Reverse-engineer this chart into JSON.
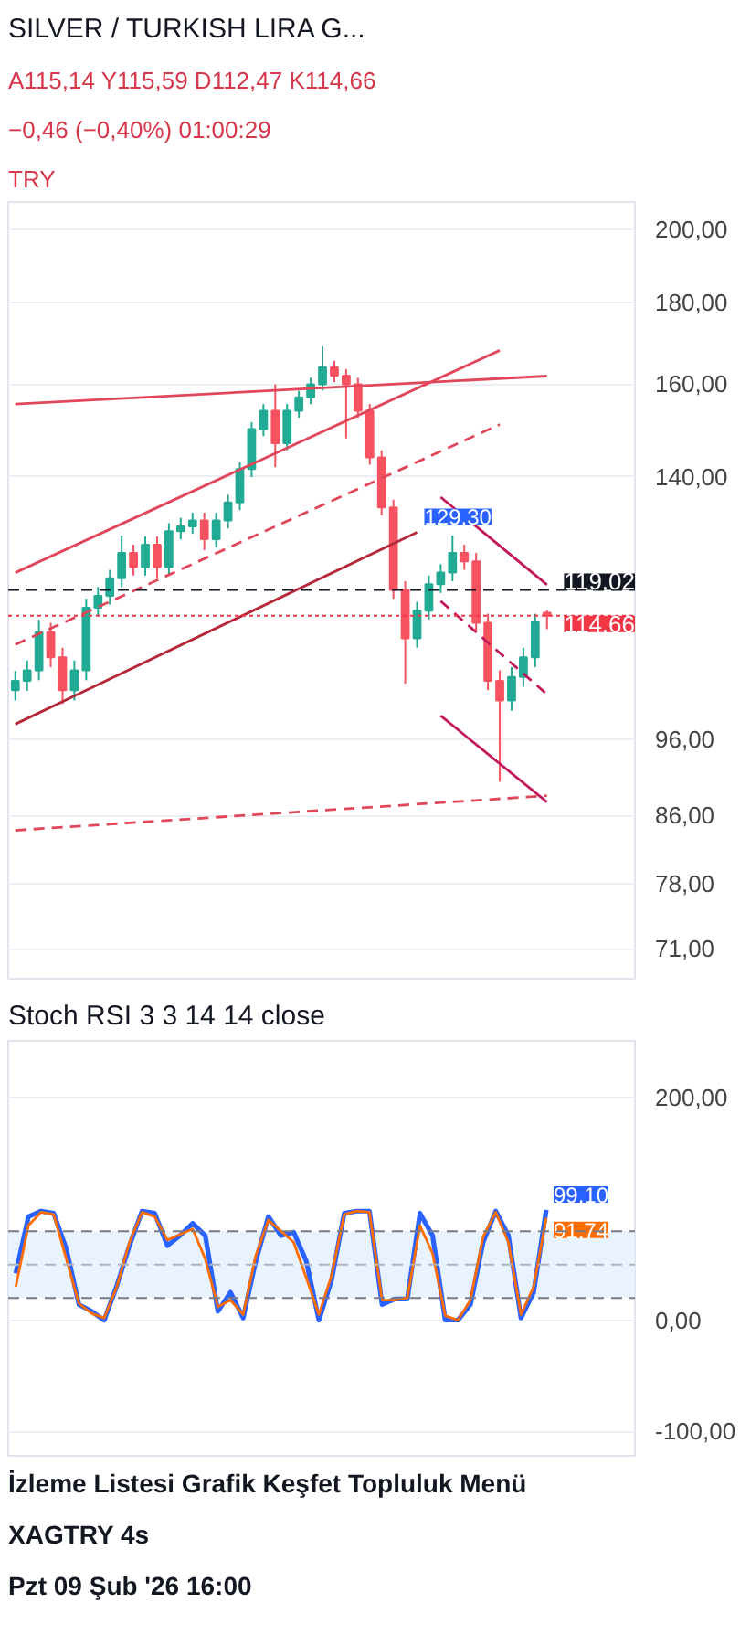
{
  "chart_data": [
    {
      "type": "candlestick",
      "title": "SILVER / TURKISH LIRA G...",
      "subtitle": "A115,14  Y115,59  D112,47  K114,66",
      "annotations": [
        "−0,46 (−0,40%)   01:00:29",
        "TRY"
      ],
      "categories": [
        null,
        null,
        null,
        null,
        null,
        null,
        null,
        null,
        null,
        null,
        null,
        null,
        null,
        null,
        null,
        null,
        null,
        null,
        null,
        null,
        null,
        null,
        null,
        null,
        null,
        null,
        null,
        null,
        null,
        null,
        null,
        null,
        null,
        null,
        null,
        null,
        null,
        null,
        null,
        null,
        null,
        null,
        null,
        null,
        null,
        null
      ],
      "ohlc": [
        [
          103,
          105.9,
          101.5,
          104.4
        ],
        [
          104.4,
          107.5,
          102.9,
          106
        ],
        [
          106,
          114,
          104.5,
          112
        ],
        [
          112,
          113.5,
          106.5,
          108
        ],
        [
          108,
          109.5,
          101,
          103
        ],
        [
          103,
          107.5,
          101.5,
          106
        ],
        [
          106,
          117.5,
          104.5,
          116
        ],
        [
          116,
          119.5,
          114.5,
          118
        ],
        [
          118,
          122.5,
          116.5,
          121
        ],
        [
          121,
          128.7,
          119.5,
          125.5
        ],
        [
          125.5,
          127,
          121.5,
          123
        ],
        [
          123,
          128.5,
          121.5,
          127
        ],
        [
          127,
          128.5,
          121,
          123
        ],
        [
          123,
          131,
          121.5,
          129.5
        ],
        [
          129.5,
          132,
          128,
          130.4
        ],
        [
          130.4,
          133,
          129,
          131.5
        ],
        [
          131.5,
          133,
          126,
          128
        ],
        [
          128,
          133,
          126.5,
          131.5
        ],
        [
          131.5,
          136.5,
          130,
          135
        ],
        [
          135,
          143,
          133.5,
          141.6
        ],
        [
          141.6,
          151.5,
          140,
          150
        ],
        [
          150,
          155.5,
          148.5,
          154
        ],
        [
          154,
          160,
          142,
          147
        ],
        [
          147,
          155.5,
          145.5,
          154
        ],
        [
          154,
          158.5,
          152.5,
          157
        ],
        [
          157,
          161.5,
          155.5,
          160
        ],
        [
          160,
          169,
          158.5,
          164
        ],
        [
          164,
          165.5,
          160.5,
          162
        ],
        [
          162,
          163.5,
          148,
          160
        ],
        [
          160,
          161.5,
          152.5,
          154
        ],
        [
          154,
          155.5,
          142.5,
          144
        ],
        [
          144,
          145.5,
          132.5,
          134
        ],
        [
          134,
          135.5,
          117.5,
          119
        ],
        [
          119,
          120.5,
          104,
          111
        ],
        [
          111,
          117,
          109.5,
          115.5
        ],
        [
          115.5,
          121.5,
          114,
          120
        ],
        [
          120,
          123.5,
          118.5,
          122
        ],
        [
          122,
          128.7,
          120.5,
          125.5
        ],
        [
          125.5,
          127,
          122.5,
          124
        ],
        [
          124,
          125.5,
          112,
          113.5
        ],
        [
          113.5,
          115,
          103,
          104.4
        ],
        [
          104.4,
          106,
          90.3,
          101.5
        ],
        [
          101.5,
          106.5,
          100,
          105
        ],
        [
          105,
          109.5,
          103.5,
          108
        ],
        [
          108,
          115,
          106.5,
          113.6
        ],
        [
          115.14,
          115.59,
          112.47,
          114.66
        ]
      ],
      "series": [
        {
          "type": "line",
          "color": "#e0475b",
          "values": [
            155.5,
            null,
            null,
            null,
            null,
            null,
            null,
            null,
            null,
            null,
            null,
            null,
            null,
            null,
            null,
            null,
            null,
            null,
            null,
            null,
            null,
            null,
            null,
            null,
            null,
            null,
            null,
            null,
            null,
            null,
            null,
            null,
            null,
            null,
            null,
            null,
            null,
            null,
            null,
            null,
            null,
            null,
            null,
            null,
            null,
            161.9
          ]
        },
        {
          "type": "line",
          "color": "#e0475b",
          "values": [
            122,
            null,
            null,
            null,
            null,
            null,
            null,
            null,
            null,
            null,
            null,
            null,
            null,
            null,
            null,
            null,
            null,
            null,
            null,
            null,
            null,
            null,
            null,
            null,
            null,
            null,
            null,
            null,
            null,
            null,
            null,
            null,
            null,
            null,
            null,
            null,
            null,
            null,
            null,
            null,
            null,
            168,
            null,
            null,
            null,
            null
          ]
        },
        {
          "type": "line",
          "color": "#b5283a",
          "value_labels": [
            null,
            null,
            null,
            null,
            null,
            null,
            null,
            null,
            null,
            null,
            null,
            null,
            null,
            null,
            null,
            null,
            null,
            null,
            null,
            null,
            null,
            null,
            null,
            null,
            null,
            null,
            null,
            null,
            null,
            null,
            null,
            null,
            null,
            null,
            "129,30",
            null,
            null,
            null,
            null,
            null,
            null,
            null,
            null,
            null,
            null,
            null
          ],
          "values": [
            98.1,
            null,
            null,
            null,
            null,
            null,
            null,
            null,
            null,
            null,
            null,
            null,
            null,
            null,
            null,
            null,
            null,
            null,
            null,
            null,
            null,
            null,
            null,
            null,
            null,
            null,
            null,
            null,
            null,
            null,
            null,
            null,
            null,
            null,
            129.3,
            null,
            null,
            null,
            null,
            null,
            null,
            null,
            null,
            null,
            null,
            null
          ]
        },
        {
          "type": "line",
          "color": "#e0475b",
          "line_style": "dashed",
          "values": [
            110,
            null,
            null,
            null,
            null,
            null,
            null,
            null,
            null,
            null,
            null,
            null,
            null,
            null,
            null,
            null,
            null,
            null,
            null,
            null,
            null,
            null,
            null,
            null,
            null,
            null,
            null,
            null,
            null,
            null,
            null,
            null,
            null,
            null,
            null,
            null,
            null,
            null,
            null,
            null,
            null,
            151,
            null,
            null,
            null,
            null
          ]
        },
        {
          "type": "line",
          "color": "#c2185b",
          "values": [
            null,
            null,
            null,
            null,
            null,
            null,
            null,
            null,
            null,
            null,
            null,
            null,
            null,
            null,
            null,
            null,
            null,
            null,
            null,
            null,
            null,
            null,
            null,
            null,
            null,
            null,
            null,
            null,
            null,
            null,
            null,
            null,
            null,
            null,
            null,
            null,
            136,
            null,
            null,
            null,
            null,
            null,
            null,
            null,
            null,
            119.9
          ]
        },
        {
          "type": "line",
          "color": "#c2185b",
          "values": [
            null,
            null,
            null,
            null,
            null,
            null,
            null,
            null,
            null,
            null,
            null,
            null,
            null,
            null,
            null,
            null,
            null,
            null,
            null,
            null,
            null,
            null,
            null,
            null,
            null,
            null,
            null,
            null,
            null,
            null,
            null,
            null,
            null,
            null,
            null,
            null,
            99.3,
            null,
            null,
            null,
            null,
            null,
            null,
            null,
            null,
            87.7
          ]
        },
        {
          "type": "line",
          "color": "#c2185b",
          "line_style": "dashed",
          "values": [
            null,
            null,
            null,
            null,
            null,
            null,
            null,
            null,
            null,
            null,
            null,
            null,
            null,
            null,
            null,
            null,
            null,
            null,
            null,
            null,
            null,
            null,
            null,
            null,
            null,
            null,
            null,
            null,
            null,
            null,
            null,
            null,
            null,
            null,
            null,
            null,
            117.1,
            null,
            null,
            null,
            null,
            null,
            null,
            null,
            null,
            102.4
          ]
        },
        {
          "type": "line",
          "color": "#e0475b",
          "line_style": "dashed",
          "values": [
            84.2,
            null,
            null,
            null,
            null,
            null,
            null,
            null,
            null,
            null,
            null,
            null,
            null,
            null,
            null,
            null,
            null,
            null,
            null,
            null,
            null,
            null,
            null,
            null,
            null,
            null,
            null,
            null,
            null,
            null,
            null,
            null,
            null,
            null,
            null,
            null,
            null,
            null,
            null,
            null,
            null,
            null,
            null,
            null,
            null,
            88.5
          ]
        }
      ],
      "ylim": [
        68,
        208
      ],
      "log": true,
      "yticks": [
        {
          "value": 71,
          "label": "71,00"
        },
        {
          "value": 78,
          "label": "78,00"
        },
        {
          "value": 86,
          "label": "86,00"
        },
        {
          "value": 96,
          "label": "96,00"
        },
        {
          "value": 140,
          "label": "140,00"
        },
        {
          "value": 160,
          "label": "160,00"
        },
        {
          "value": 180,
          "label": "180,00"
        },
        {
          "value": 200,
          "label": "200,00"
        }
      ],
      "tick_labels": "y",
      "grid": "y",
      "ref_lines": [
        {
          "axis": "y",
          "value": 119.02,
          "label": "119,02",
          "color": "#131722",
          "line_style": "dashed"
        },
        {
          "axis": "y",
          "value": 114.66,
          "label": "114,66",
          "color": "#f23645",
          "line_style": "dotted"
        }
      ]
    },
    {
      "type": "line",
      "title": "Stoch RSI 3 3 14 14 close",
      "categories": [
        null,
        null,
        null,
        null,
        null,
        null,
        null,
        null,
        null,
        null,
        null,
        null,
        null,
        null,
        null,
        null,
        null,
        null,
        null,
        null,
        null,
        null,
        null,
        null,
        null,
        null,
        null,
        null,
        null,
        null,
        null,
        null,
        null,
        null,
        null,
        null,
        null,
        null,
        null,
        null,
        null,
        null,
        null
      ],
      "series": [
        {
          "color": "#2962ff",
          "value_labels": [
            null,
            null,
            null,
            null,
            null,
            null,
            null,
            null,
            null,
            null,
            null,
            null,
            null,
            null,
            null,
            null,
            null,
            null,
            null,
            null,
            null,
            null,
            null,
            null,
            null,
            null,
            null,
            null,
            null,
            null,
            null,
            null,
            null,
            null,
            null,
            null,
            null,
            null,
            null,
            null,
            null,
            null,
            "99,10"
          ],
          "values": [
            42,
            93,
            98,
            96,
            64,
            14,
            8,
            0,
            31,
            67,
            98,
            96,
            67,
            76,
            87,
            76,
            8,
            25,
            2,
            53,
            93,
            76,
            79,
            53,
            0,
            36,
            96,
            98,
            98,
            14,
            19,
            19,
            96,
            76,
            0,
            0,
            14,
            70,
            98,
            76,
            2,
            25,
            99.1
          ]
        },
        {
          "color": "#ff6d00",
          "value_labels": [
            null,
            null,
            null,
            null,
            null,
            null,
            null,
            null,
            null,
            null,
            null,
            null,
            null,
            null,
            null,
            null,
            null,
            null,
            null,
            null,
            null,
            null,
            null,
            null,
            null,
            null,
            null,
            null,
            null,
            null,
            null,
            null,
            null,
            null,
            null,
            null,
            null,
            null,
            null,
            null,
            null,
            null,
            "91,74"
          ],
          "values": [
            30,
            85,
            97,
            95,
            55,
            15,
            6,
            2,
            30,
            70,
            97,
            93,
            72,
            77,
            82,
            55,
            12,
            18,
            5,
            58,
            90,
            80,
            70,
            38,
            5,
            40,
            95,
            98,
            97,
            18,
            18,
            20,
            85,
            60,
            4,
            0,
            18,
            75,
            97,
            70,
            5,
            30,
            91.74
          ]
        }
      ],
      "ylim": [
        -122,
        251
      ],
      "yticks": [
        {
          "value": -100,
          "label": "-100,00"
        },
        {
          "value": 0,
          "label": "0,00"
        },
        {
          "value": 200,
          "label": "200,00"
        }
      ],
      "tick_labels": "y",
      "grid": "y",
      "bands": [
        {
          "axis": "y",
          "from": 20,
          "to": 80,
          "color": "#e3f0fd"
        }
      ],
      "ref_lines": [
        {
          "axis": "y",
          "value": 80,
          "color": "#787b86",
          "line_style": "dashed"
        },
        {
          "axis": "y",
          "value": 50,
          "color": "#b0b3bb",
          "line_style": "dashed"
        },
        {
          "axis": "y",
          "value": 20,
          "color": "#787b86",
          "line_style": "dashed"
        }
      ],
      "annotations": [
        "Pzt 09 Şub '26  16:00",
        "XAGTRY   4s",
        "İzleme Listesi   Grafik   Keşfet   Topluluk   Menü"
      ]
    }
  ]
}
